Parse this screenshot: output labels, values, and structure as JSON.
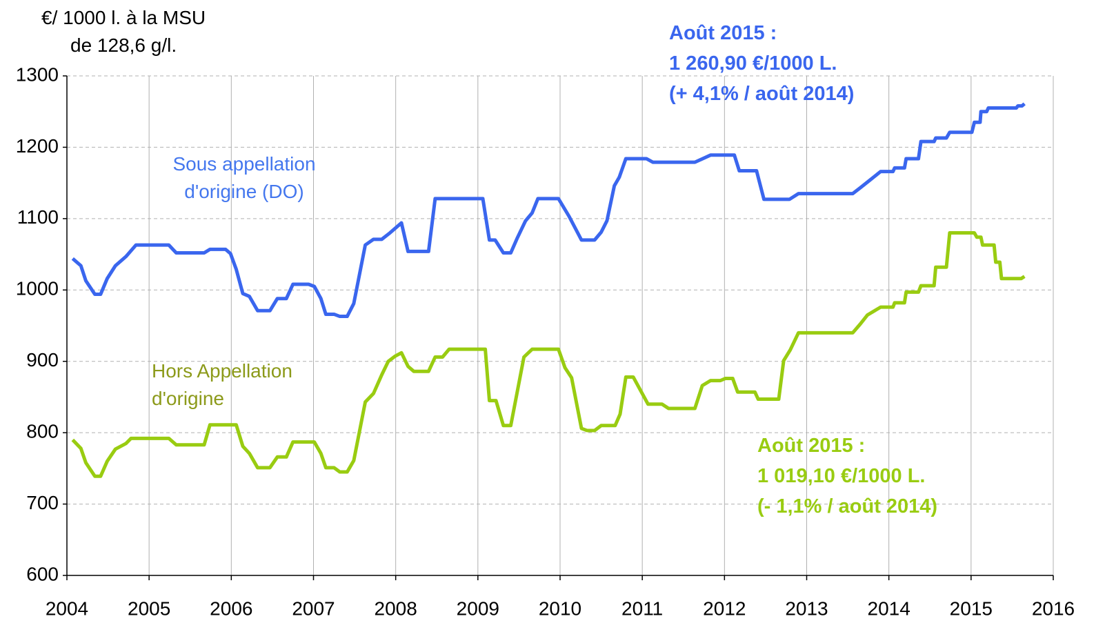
{
  "chart_data": {
    "type": "line",
    "y_label_lines": [
      "€/ 1000 l. à la MSU",
      "de 128,6 g/l."
    ],
    "xlim": [
      2004,
      2016
    ],
    "xticks": [
      2004,
      2005,
      2006,
      2007,
      2008,
      2009,
      2010,
      2011,
      2012,
      2013,
      2014,
      2015,
      2016
    ],
    "ylim": [
      600,
      1300
    ],
    "yticks": [
      600,
      700,
      800,
      900,
      1000,
      1100,
      1200,
      1300
    ],
    "grid": true,
    "series": [
      {
        "name": "Sous appellation d'origine (DO)",
        "color": "#3a66ee",
        "label_color": "#4477ee",
        "x": [
          2004.07,
          2004.17,
          2004.23,
          2004.34,
          2004.41,
          2004.49,
          2004.59,
          2004.72,
          2004.84,
          2005.24,
          2005.33,
          2005.67,
          2005.74,
          2005.93,
          2005.99,
          2006.06,
          2006.14,
          2006.22,
          2006.32,
          2006.47,
          2006.56,
          2006.67,
          2006.75,
          2006.94,
          2007.01,
          2007.09,
          2007.15,
          2007.25,
          2007.32,
          2007.41,
          2007.49,
          2007.63,
          2007.73,
          2007.83,
          2007.93,
          2008.07,
          2008.15,
          2008.4,
          2008.48,
          2009.06,
          2009.14,
          2009.21,
          2009.31,
          2009.4,
          2009.48,
          2009.58,
          2009.66,
          2009.73,
          2009.98,
          2010.11,
          2010.26,
          2010.42,
          2010.5,
          2010.57,
          2010.66,
          2010.72,
          2010.8,
          2011.05,
          2011.13,
          2011.64,
          2011.83,
          2012.12,
          2012.18,
          2012.39,
          2012.48,
          2012.79,
          2012.9,
          2013.56,
          2013.65,
          2013.77,
          2013.9,
          2014.05,
          2014.07,
          2014.19,
          2014.21,
          2014.36,
          2014.39,
          2014.55,
          2014.57,
          2014.7,
          2014.74,
          2015.01,
          2015.04,
          2015.11,
          2015.12,
          2015.19,
          2015.21,
          2015.55,
          2015.57,
          2015.62,
          2015.65
        ],
        "values": [
          1044,
          1034,
          1013,
          994,
          994,
          1016,
          1034,
          1047,
          1063,
          1063,
          1052,
          1052,
          1057,
          1057,
          1051,
          1029,
          995,
          991,
          971,
          971,
          988,
          988,
          1008,
          1008,
          1005,
          988,
          966,
          966,
          963,
          963,
          981,
          1063,
          1071,
          1071,
          1080,
          1094,
          1054,
          1054,
          1128,
          1128,
          1070,
          1070,
          1052,
          1052,
          1073,
          1097,
          1108,
          1128,
          1128,
          1103,
          1070,
          1070,
          1081,
          1097,
          1146,
          1158,
          1184,
          1184,
          1179,
          1179,
          1189,
          1189,
          1167,
          1167,
          1127,
          1127,
          1135,
          1135,
          1143,
          1154,
          1166,
          1166,
          1171,
          1171,
          1184,
          1184,
          1208,
          1208,
          1213,
          1213,
          1221,
          1221,
          1235,
          1235,
          1250,
          1250,
          1255,
          1255,
          1258,
          1258,
          1261
        ]
      },
      {
        "name": "Hors Appellation d'origine",
        "color": "#99cc11",
        "label_color": "#8c9a1a",
        "x": [
          2004.07,
          2004.17,
          2004.23,
          2004.34,
          2004.41,
          2004.49,
          2004.59,
          2004.72,
          2004.78,
          2005.24,
          2005.33,
          2005.67,
          2005.74,
          2006.06,
          2006.14,
          2006.22,
          2006.32,
          2006.47,
          2006.56,
          2006.67,
          2006.75,
          2007.01,
          2007.09,
          2007.15,
          2007.25,
          2007.32,
          2007.41,
          2007.49,
          2007.63,
          2007.73,
          2007.83,
          2007.91,
          2007.99,
          2008.07,
          2008.15,
          2008.22,
          2008.4,
          2008.48,
          2008.57,
          2008.65,
          2009.09,
          2009.14,
          2009.22,
          2009.31,
          2009.4,
          2009.56,
          2009.66,
          2009.98,
          2010.06,
          2010.14,
          2010.26,
          2010.33,
          2010.42,
          2010.5,
          2010.67,
          2010.73,
          2010.8,
          2010.89,
          2011.07,
          2011.24,
          2011.32,
          2011.64,
          2011.73,
          2011.83,
          2011.95,
          2012.01,
          2012.1,
          2012.16,
          2012.37,
          2012.41,
          2012.66,
          2012.72,
          2012.8,
          2012.9,
          2013.56,
          2013.65,
          2013.74,
          2013.9,
          2014.05,
          2014.07,
          2014.19,
          2014.21,
          2014.36,
          2014.39,
          2014.55,
          2014.57,
          2014.7,
          2014.74,
          2015.04,
          2015.07,
          2015.12,
          2015.14,
          2015.28,
          2015.3,
          2015.35,
          2015.37,
          2015.61,
          2015.65
        ],
        "values": [
          790,
          778,
          758,
          739,
          739,
          760,
          777,
          785,
          792,
          792,
          783,
          783,
          811,
          811,
          781,
          771,
          751,
          751,
          766,
          766,
          787,
          787,
          771,
          751,
          751,
          745,
          745,
          761,
          843,
          855,
          881,
          900,
          907,
          912,
          893,
          886,
          886,
          906,
          906,
          917,
          917,
          845,
          845,
          810,
          810,
          906,
          917,
          917,
          891,
          877,
          806,
          803,
          803,
          810,
          810,
          826,
          878,
          878,
          840,
          840,
          834,
          834,
          866,
          873,
          873,
          876,
          876,
          857,
          857,
          847,
          847,
          901,
          916,
          940,
          940,
          952,
          965,
          976,
          976,
          982,
          982,
          997,
          997,
          1006,
          1006,
          1032,
          1032,
          1080,
          1080,
          1074,
          1074,
          1063,
          1063,
          1039,
          1039,
          1016,
          1016,
          1019
        ]
      }
    ],
    "annotations": [
      {
        "lines": [
          "Août 2015 :",
          "1 260,90 €/1000 L.",
          "(+ 4,1% / août 2014)"
        ],
        "color": "#3a66ee"
      },
      {
        "lines": [
          "Août 2015 :",
          "1 019,10 €/1000 L.",
          "(- 1,1% / août 2014)"
        ],
        "color": "#99cc11"
      }
    ]
  }
}
